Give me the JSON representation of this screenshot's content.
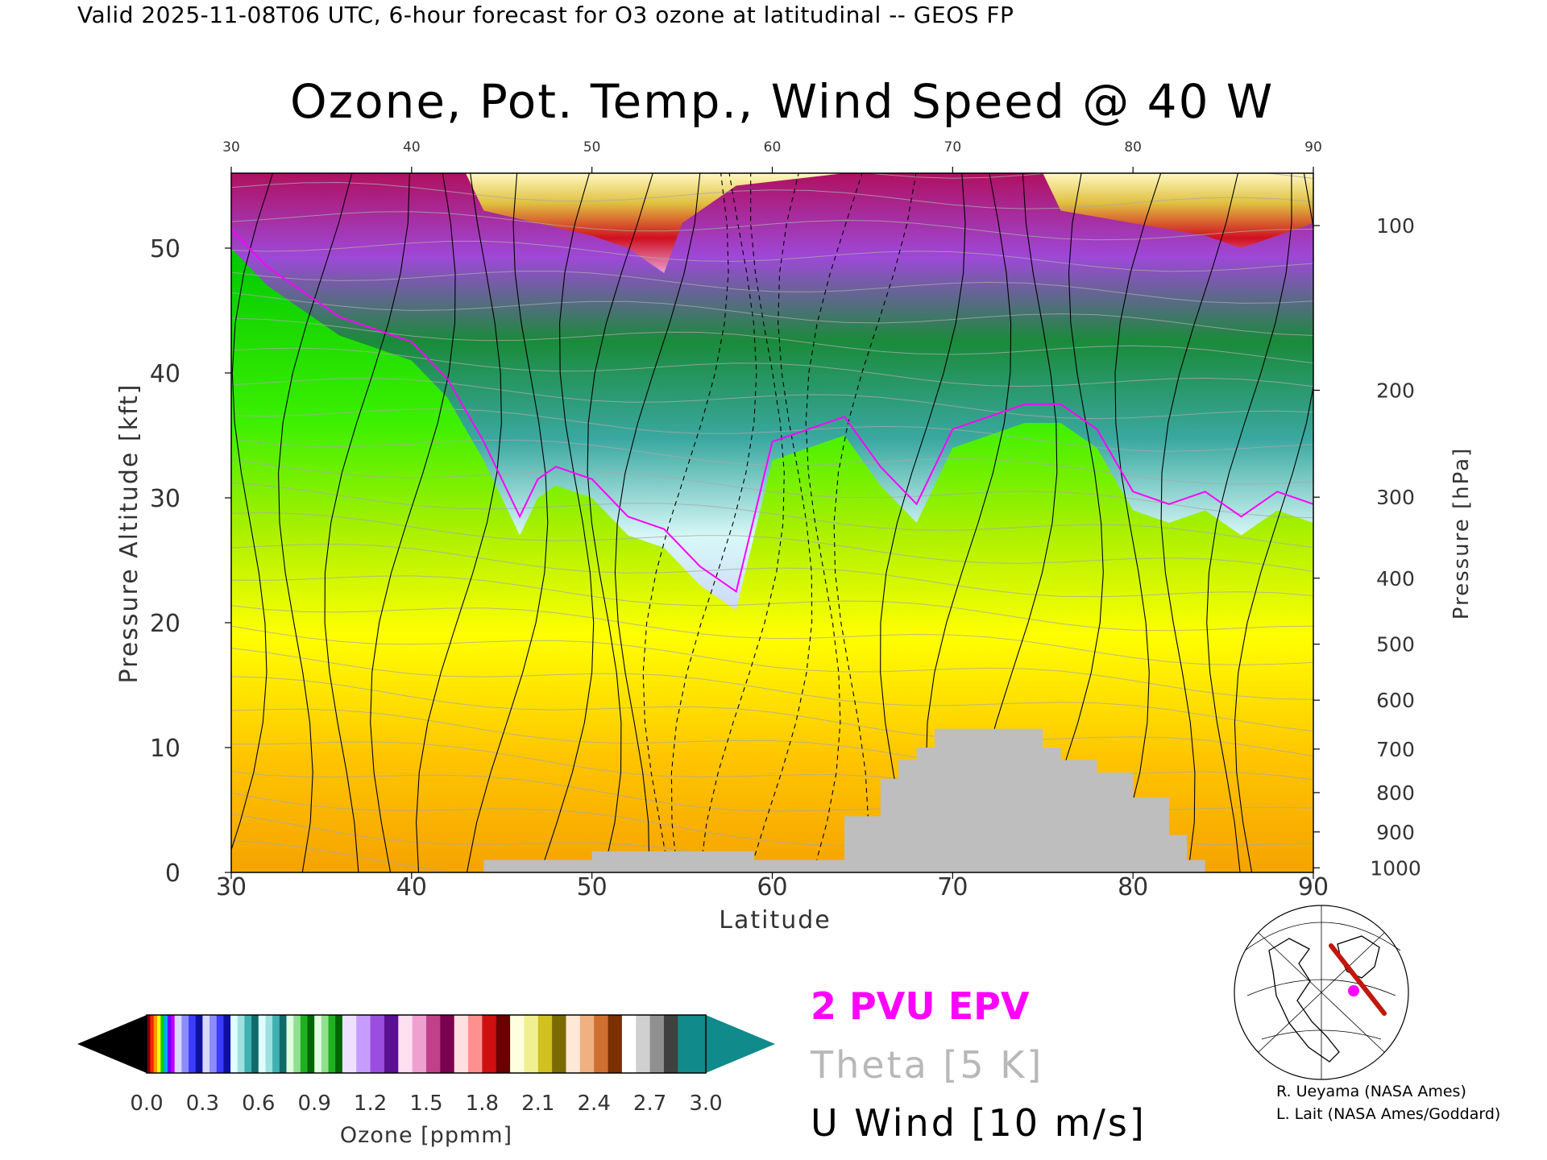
{
  "header": {
    "valid_line": "Valid 2025-11-08T06 UTC, 6-hour forecast for O3 ozone at latitudinal -- GEOS FP",
    "title": "Ozone, Pot. Temp., Wind Speed @ 40 W"
  },
  "legend": {
    "epv": "2 PVU EPV",
    "theta": "Theta [5 K]",
    "uwind": "U Wind [10 m/s]"
  },
  "credits": {
    "line1": "R. Ueyama (NASA Ames)",
    "line2": "L. Lait (NASA Ames/Goddard)"
  },
  "colors": {
    "epv": "#ff00ff",
    "theta": "#a9a9a9",
    "wind": "#000000",
    "terrain": "#bebebe"
  },
  "colorbar": {
    "label": "Ozone [ppmm]",
    "tick_labels": [
      "0.0",
      "0.3",
      "0.6",
      "0.9",
      "1.2",
      "1.5",
      "1.8",
      "2.1",
      "2.4",
      "2.7",
      "3.0"
    ],
    "tick_values": [
      0.0,
      0.3,
      0.6,
      0.9,
      1.2,
      1.5,
      1.8,
      2.1,
      2.4,
      2.7,
      3.0
    ],
    "under_color": "#000000",
    "over_color": "#108a8a",
    "bands": [
      {
        "from": 0.0,
        "to": 0.15,
        "colors": [
          "#7a0000",
          "#ff2000",
          "#ff9900",
          "#ffff00",
          "#00d000",
          "#00aaff",
          "#6a00ff",
          "#c000ff"
        ]
      },
      {
        "from": 0.15,
        "to": 0.3,
        "colors": [
          "#d8d8ff",
          "#8c8cff",
          "#3c3cff",
          "#1010a0"
        ]
      },
      {
        "from": 0.3,
        "to": 0.45,
        "colors": [
          "#d8d8ff",
          "#8c8cff",
          "#3c3cff",
          "#1010a0"
        ]
      },
      {
        "from": 0.45,
        "to": 0.6,
        "colors": [
          "#e0ffff",
          "#9fe0e0",
          "#40b0b0",
          "#106a6a"
        ]
      },
      {
        "from": 0.6,
        "to": 0.75,
        "colors": [
          "#e0ffff",
          "#9fe0e0",
          "#40b0b0",
          "#106a6a"
        ]
      },
      {
        "from": 0.75,
        "to": 0.9,
        "colors": [
          "#e0ffe0",
          "#90e090",
          "#20b020",
          "#006400"
        ]
      },
      {
        "from": 0.9,
        "to": 1.05,
        "colors": [
          "#e0ffe0",
          "#90e090",
          "#20b020",
          "#006400"
        ]
      },
      {
        "from": 1.05,
        "to": 1.35,
        "colors": [
          "#f0e0ff",
          "#c79cff",
          "#9a4ee0",
          "#5a1090"
        ]
      },
      {
        "from": 1.35,
        "to": 1.65,
        "colors": [
          "#ffe0f0",
          "#f0a0d0",
          "#c0408a",
          "#7a0050"
        ]
      },
      {
        "from": 1.65,
        "to": 1.95,
        "colors": [
          "#ffe0e0",
          "#ff9090",
          "#d01010",
          "#6a0000"
        ]
      },
      {
        "from": 1.95,
        "to": 2.25,
        "colors": [
          "#ffffe0",
          "#f0f090",
          "#d0c020",
          "#7a6a00"
        ]
      },
      {
        "from": 2.25,
        "to": 2.55,
        "colors": [
          "#ffe8d8",
          "#f0b080",
          "#d07030",
          "#7a3000"
        ]
      },
      {
        "from": 2.55,
        "to": 2.85,
        "colors": [
          "#ffffff",
          "#d0d0d0",
          "#909090",
          "#404040"
        ]
      },
      {
        "from": 2.85,
        "to": 3.0,
        "colors": [
          "#108a8a",
          "#108a8a"
        ]
      }
    ]
  },
  "chart_data": {
    "type": "heatmap",
    "x_label": "Latitude",
    "y_label": "Pressure Altitude [kft]",
    "y2_label": "Pressure [hPa]",
    "xlim": [
      30,
      90
    ],
    "ylim": [
      0,
      56
    ],
    "x_ticks": [
      30,
      40,
      50,
      60,
      70,
      80,
      90
    ],
    "x_tick_labels": [
      "30",
      "40",
      "50",
      "60",
      "70",
      "80",
      "90"
    ],
    "y_ticks": [
      0,
      10,
      20,
      30,
      40,
      50
    ],
    "y_tick_labels": [
      "0",
      "10",
      "20",
      "30",
      "40",
      "50"
    ],
    "pressure_ticks": [
      100,
      200,
      300,
      400,
      500,
      600,
      700,
      800,
      900,
      1000
    ],
    "pressure_tick_labels": [
      "100",
      "200",
      "300",
      "400",
      "500",
      "600",
      "700",
      "800",
      "900",
      "1000"
    ],
    "tropopause_kft": [
      [
        30,
        50
      ],
      [
        32,
        47
      ],
      [
        34,
        45
      ],
      [
        36,
        43
      ],
      [
        38,
        42
      ],
      [
        40,
        41
      ],
      [
        42,
        38
      ],
      [
        44,
        33
      ],
      [
        46,
        27
      ],
      [
        47,
        30
      ],
      [
        48,
        31
      ],
      [
        50,
        30
      ],
      [
        52,
        27
      ],
      [
        54,
        26
      ],
      [
        56,
        23
      ],
      [
        58,
        21
      ],
      [
        60,
        33
      ],
      [
        62,
        34
      ],
      [
        64,
        35
      ],
      [
        66,
        31
      ],
      [
        68,
        28
      ],
      [
        70,
        34
      ],
      [
        72,
        35
      ],
      [
        74,
        36
      ],
      [
        76,
        36
      ],
      [
        78,
        34
      ],
      [
        80,
        29
      ],
      [
        82,
        28
      ],
      [
        84,
        29
      ],
      [
        86,
        27
      ],
      [
        88,
        29
      ],
      [
        90,
        28
      ]
    ],
    "stratosphere_top_kft": [
      [
        30,
        54
      ],
      [
        34,
        52
      ],
      [
        38,
        51
      ],
      [
        42,
        52
      ],
      [
        44,
        51
      ],
      [
        46,
        45
      ],
      [
        48,
        47
      ],
      [
        50,
        48
      ],
      [
        52,
        48
      ],
      [
        54,
        44
      ],
      [
        56,
        42
      ],
      [
        58,
        44
      ],
      [
        60,
        47
      ],
      [
        62,
        49
      ],
      [
        64,
        50
      ],
      [
        66,
        49
      ],
      [
        68,
        48
      ],
      [
        70,
        50
      ],
      [
        72,
        52
      ],
      [
        74,
        52
      ],
      [
        76,
        50
      ],
      [
        78,
        48
      ],
      [
        80,
        49
      ],
      [
        82,
        49
      ],
      [
        84,
        48
      ],
      [
        86,
        47
      ],
      [
        88,
        49
      ],
      [
        90,
        50
      ]
    ],
    "high_ozone_cap_kft": [
      [
        43,
        56
      ],
      [
        44,
        53
      ],
      [
        47,
        52
      ],
      [
        50,
        51
      ],
      [
        52,
        50
      ],
      [
        54,
        48
      ],
      [
        55,
        52
      ],
      [
        58,
        55
      ],
      [
        64,
        56
      ],
      [
        75,
        56
      ],
      [
        76,
        53
      ],
      [
        80,
        52
      ],
      [
        84,
        51
      ],
      [
        86,
        50
      ],
      [
        88,
        51
      ],
      [
        90,
        52
      ]
    ],
    "surface_terrain_kft": [
      [
        30,
        0
      ],
      [
        44,
        0
      ],
      [
        44,
        1
      ],
      [
        50,
        1
      ],
      [
        50,
        1.7
      ],
      [
        59,
        1.7
      ],
      [
        59,
        1
      ],
      [
        64,
        1
      ],
      [
        64,
        4.5
      ],
      [
        66,
        4.5
      ],
      [
        66,
        7.5
      ],
      [
        67,
        7.5
      ],
      [
        67,
        9
      ],
      [
        68,
        9
      ],
      [
        68,
        10
      ],
      [
        69,
        10
      ],
      [
        69,
        11.5
      ],
      [
        75,
        11.5
      ],
      [
        75,
        10
      ],
      [
        76,
        10
      ],
      [
        76,
        9
      ],
      [
        78,
        9
      ],
      [
        78,
        8
      ],
      [
        80,
        8
      ],
      [
        80,
        6
      ],
      [
        82,
        6
      ],
      [
        82,
        3
      ],
      [
        83,
        3
      ],
      [
        83,
        1
      ],
      [
        84,
        1
      ],
      [
        84,
        0
      ],
      [
        90,
        0
      ]
    ]
  }
}
